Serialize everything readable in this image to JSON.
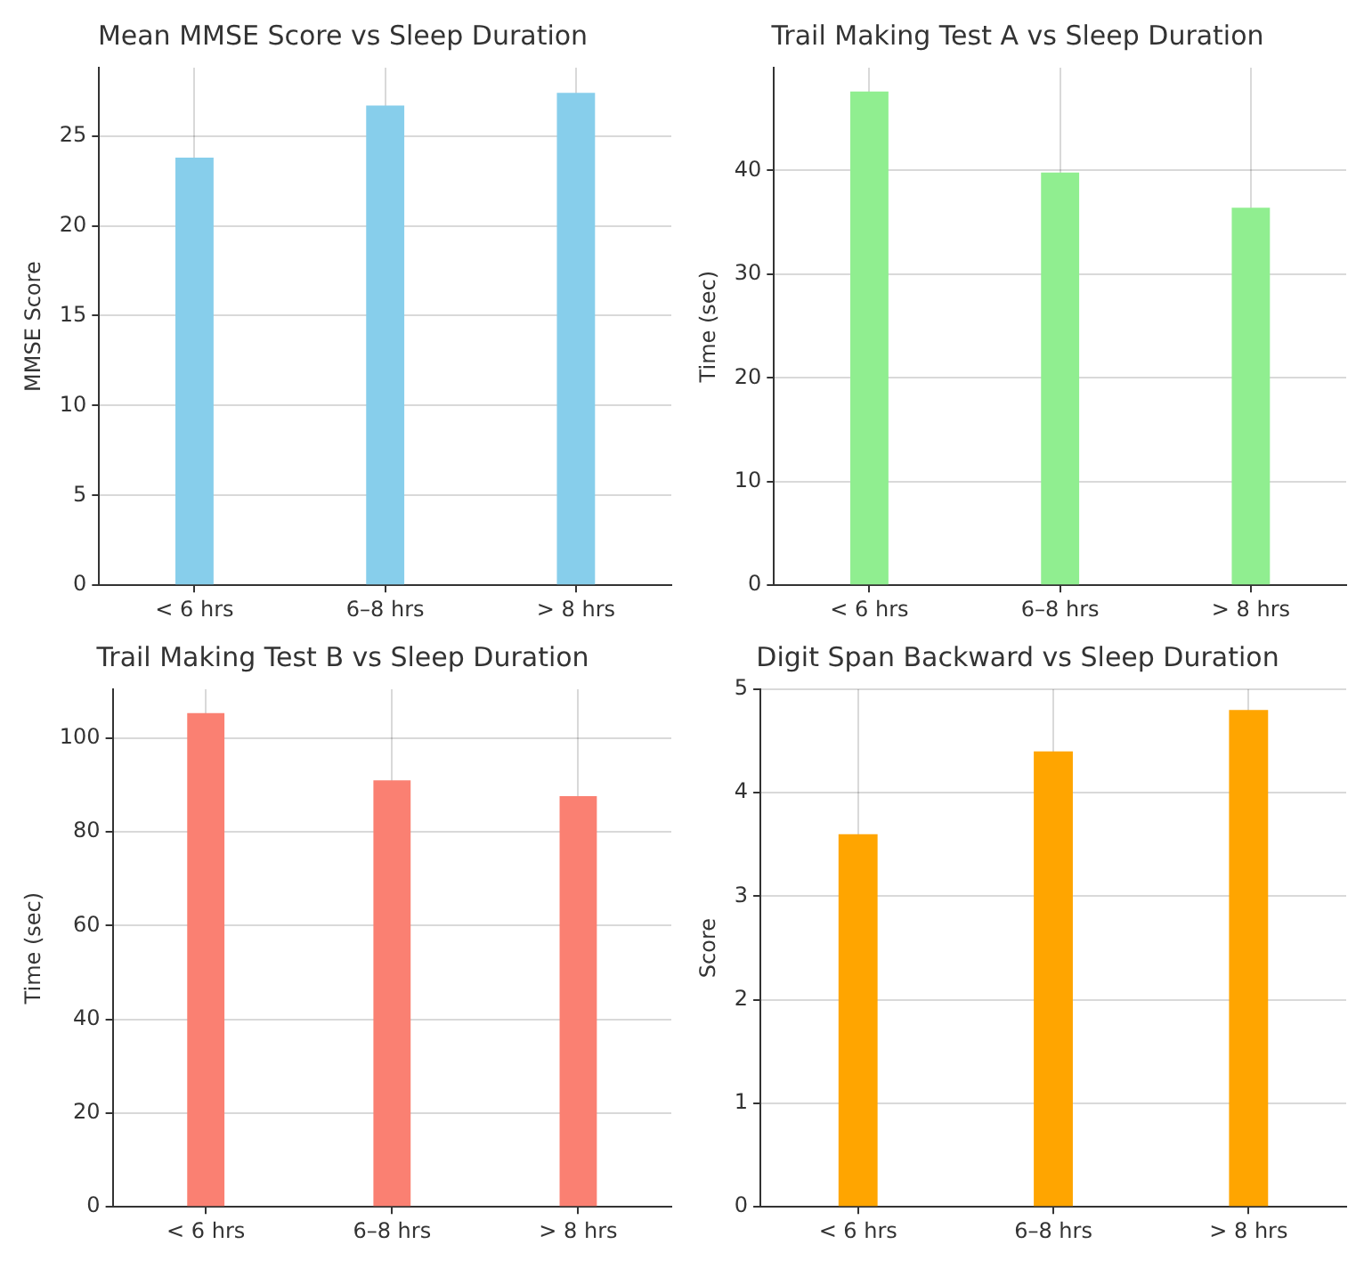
{
  "chart_data": [
    {
      "type": "bar",
      "title": "Mean MMSE Score vs Sleep Duration",
      "ylabel": "MMSE Score",
      "categories": [
        "< 6 hrs",
        "6–8 hrs",
        "> 8 hrs"
      ],
      "values": [
        23.8,
        26.7,
        27.4
      ],
      "color": "#87ceeb",
      "ylim": [
        0,
        28.8
      ],
      "yticks": [
        0,
        5,
        10,
        15,
        20,
        25
      ],
      "grid": true
    },
    {
      "type": "bar",
      "title": "Trail Making Test A vs Sleep Duration",
      "ylabel": "Time (sec)",
      "categories": [
        "< 6 hrs",
        "6–8 hrs",
        "> 8 hrs"
      ],
      "values": [
        47.6,
        39.8,
        36.4
      ],
      "color": "#90ee90",
      "ylim": [
        0,
        49.9
      ],
      "yticks": [
        0,
        10,
        20,
        30,
        40
      ],
      "grid": true
    },
    {
      "type": "bar",
      "title": "Trail Making Test B vs Sleep Duration",
      "ylabel": "Time (sec)",
      "categories": [
        "< 6 hrs",
        "6–8 hrs",
        "> 8 hrs"
      ],
      "values": [
        105.3,
        91.0,
        87.6
      ],
      "color": "#fa8072",
      "ylim": [
        0,
        110.4
      ],
      "yticks": [
        0,
        20,
        40,
        60,
        80,
        100
      ],
      "grid": true
    },
    {
      "type": "bar",
      "title": "Digit Span Backward vs Sleep Duration",
      "ylabel": "Score",
      "categories": [
        "< 6 hrs",
        "6–8 hrs",
        "> 8 hrs"
      ],
      "values": [
        3.6,
        4.4,
        4.8
      ],
      "color": "#ffa500",
      "ylim": [
        0,
        5
      ],
      "yticks": [
        0,
        1,
        2,
        3,
        4,
        5
      ],
      "grid": true
    }
  ]
}
